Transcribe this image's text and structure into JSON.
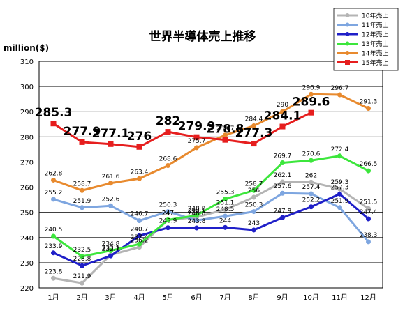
{
  "chart_data": {
    "type": "line",
    "title": "世界半導体売上推移",
    "ylabel": "million($)",
    "xlabel": "",
    "categories": [
      "1月",
      "2月",
      "3月",
      "4月",
      "5月",
      "6月",
      "7月",
      "8月",
      "9月",
      "10月",
      "11月",
      "12月"
    ],
    "ylim": [
      220,
      310
    ],
    "yticks": [
      220,
      230,
      240,
      250,
      260,
      270,
      280,
      290,
      300,
      310
    ],
    "grid": true,
    "legend": "top-right",
    "series": [
      {
        "name": "10年売上",
        "color": "#b4b4b4",
        "values": [
          223.8,
          221.9,
          233.1,
          236.2,
          247.0,
          248.1,
          251.1,
          256.0,
          262.1,
          262.0,
          259.3,
          251.5
        ]
      },
      {
        "name": "11年売上",
        "color": "#7ea6e0",
        "values": [
          255.2,
          251.9,
          252.6,
          246.7,
          250.3,
          246.8,
          248.5,
          250.3,
          257.6,
          257.4,
          251.9,
          238.3
        ]
      },
      {
        "name": "12年売上",
        "color": "#1f1fc8",
        "values": [
          233.9,
          228.8,
          232.7,
          240.7,
          243.9,
          243.8,
          244.0,
          243.0,
          247.9,
          252.2,
          257.3,
          247.4
        ]
      },
      {
        "name": "13年売上",
        "color": "#3ce63c",
        "values": [
          240.5,
          232.5,
          234.8,
          237.4,
          247.0,
          248.8,
          255.3,
          258.7,
          269.7,
          270.6,
          272.4,
          266.5
        ]
      },
      {
        "name": "14年売上",
        "color": "#e88a2e",
        "values": [
          262.8,
          258.7,
          261.6,
          263.4,
          268.6,
          275.7,
          280.7,
          284.4,
          290.0,
          296.9,
          296.7,
          291.3
        ]
      },
      {
        "name": "15年売上",
        "color": "#e61e1e",
        "values": [
          285.3,
          277.9,
          277.1,
          276.0,
          282.0,
          279.9,
          278.8,
          277.3,
          284.1,
          289.6,
          null,
          null
        ]
      }
    ]
  }
}
